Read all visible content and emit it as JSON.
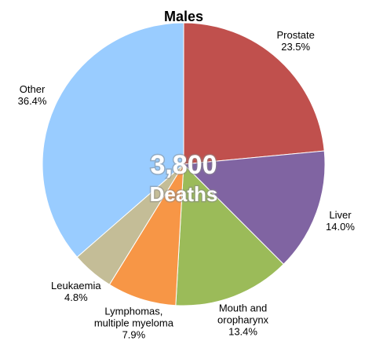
{
  "chart_data": {
    "type": "pie",
    "title": "Males",
    "categories": [
      "Prostate",
      "Liver",
      "Mouth and\noropharynx",
      "Lymphomas,\nmultiple myeloma",
      "Leukaemia",
      "Other"
    ],
    "values": [
      23.5,
      14.0,
      13.4,
      7.9,
      4.8,
      36.4
    ],
    "value_labels": [
      "23.5%",
      "14.0%",
      "13.4%",
      "7.9%",
      "4.8%",
      "36.4%"
    ],
    "colors": [
      "#c0504d",
      "#8064a2",
      "#9bbb59",
      "#f79646",
      "#c4bd97",
      "#99ccff"
    ],
    "annotations": [
      "3,800",
      "Deaths"
    ]
  }
}
